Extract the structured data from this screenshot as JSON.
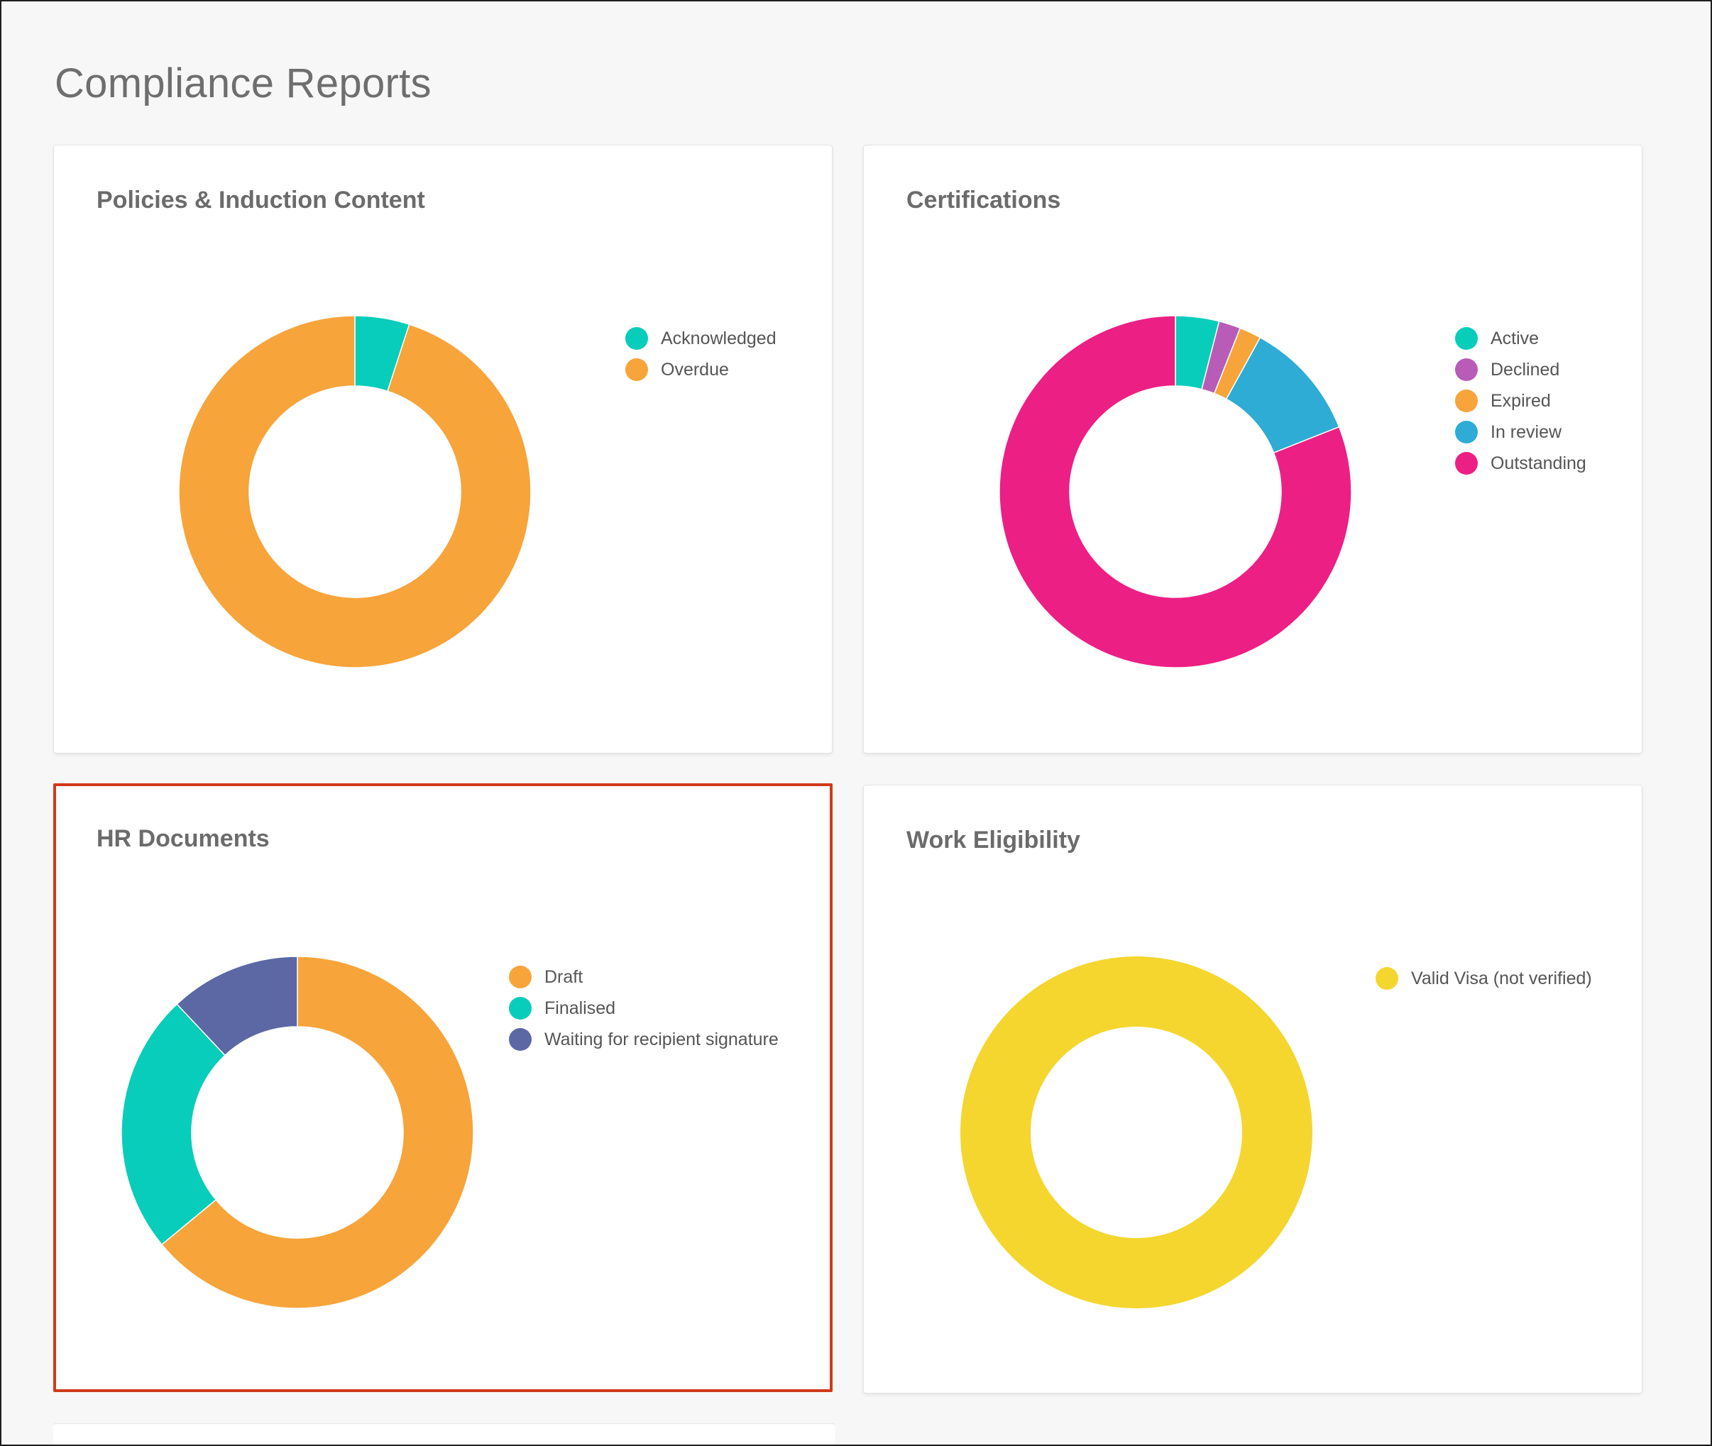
{
  "page": {
    "title": "Compliance Reports"
  },
  "colors": {
    "teal": "#08cdba",
    "orange": "#f7a43b",
    "purple": "#b85cb7",
    "blue": "#2eacd5",
    "pink": "#ec1f84",
    "slate": "#5b68a4",
    "yellow": "#f4d62e",
    "selection_outline": "#d03a1c"
  },
  "cards": [
    {
      "title": "Policies & Induction Content"
    },
    {
      "title": "Certifications"
    },
    {
      "title": "HR Documents"
    },
    {
      "title": "Work Eligibility"
    }
  ],
  "chart_data": [
    {
      "type": "pie",
      "title": "Policies & Induction Content",
      "style": "donut",
      "legend_position": "right",
      "categories": [
        "Acknowledged",
        "Overdue"
      ],
      "values": [
        5,
        95
      ],
      "colors": [
        "#08cdba",
        "#f7a43b"
      ]
    },
    {
      "type": "pie",
      "title": "Certifications",
      "style": "donut",
      "legend_position": "right",
      "categories": [
        "Active",
        "Declined",
        "Expired",
        "In review",
        "Outstanding"
      ],
      "values": [
        4,
        2,
        2,
        11,
        81
      ],
      "colors": [
        "#08cdba",
        "#b85cb7",
        "#f7a43b",
        "#2eacd5",
        "#ec1f84"
      ]
    },
    {
      "type": "pie",
      "title": "HR Documents",
      "style": "donut",
      "legend_position": "right",
      "categories": [
        "Draft",
        "Finalised",
        "Waiting for recipient signature"
      ],
      "values": [
        64,
        24,
        12
      ],
      "colors": [
        "#f7a43b",
        "#08cdba",
        "#5b68a4"
      ]
    },
    {
      "type": "pie",
      "title": "Work Eligibility",
      "style": "donut",
      "legend_position": "right",
      "categories": [
        "Valid Visa (not verified)"
      ],
      "values": [
        100
      ],
      "colors": [
        "#f4d62e"
      ]
    }
  ]
}
